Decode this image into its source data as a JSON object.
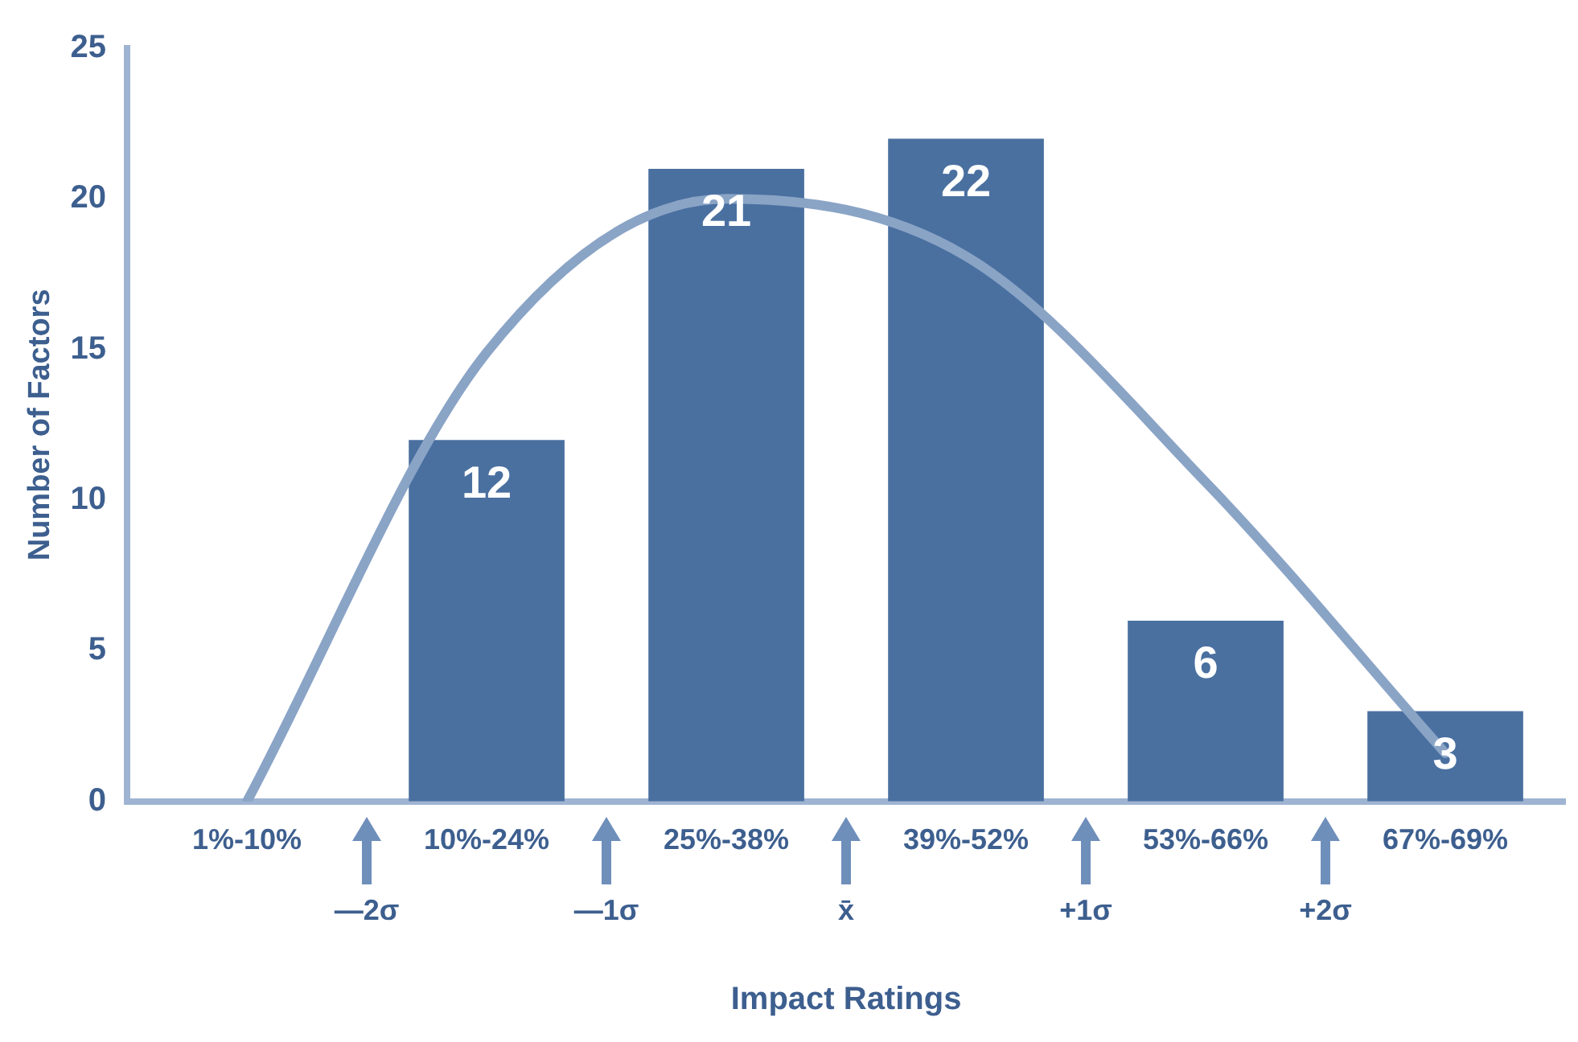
{
  "chart_data": {
    "type": "bar",
    "xlabel": "Impact Ratings",
    "ylabel": "Number of Factors",
    "categories": [
      "1%-10%",
      "10%-24%",
      "25%-38%",
      "39%-52%",
      "53%-66%",
      "67%-69%"
    ],
    "series": [
      {
        "color": "#4a70a0",
        "values": [
          0,
          12,
          21,
          22,
          6,
          3
        ],
        "value_labels": [
          null,
          "12",
          "21",
          "22",
          "6",
          "3"
        ]
      },
      {
        "type": "line",
        "color": "#8aa4c6",
        "values": [
          0,
          14.9,
          20,
          18.1,
          10.6,
          1.6
        ],
        "marker": "none"
      }
    ],
    "ylim": [
      0,
      25
    ],
    "yticks": [
      0,
      5,
      10,
      15,
      20,
      25
    ],
    "grid": false,
    "legend": false,
    "annotations": [
      "—2σ",
      "—1σ",
      "x̄",
      "+1σ",
      "+2σ"
    ]
  }
}
